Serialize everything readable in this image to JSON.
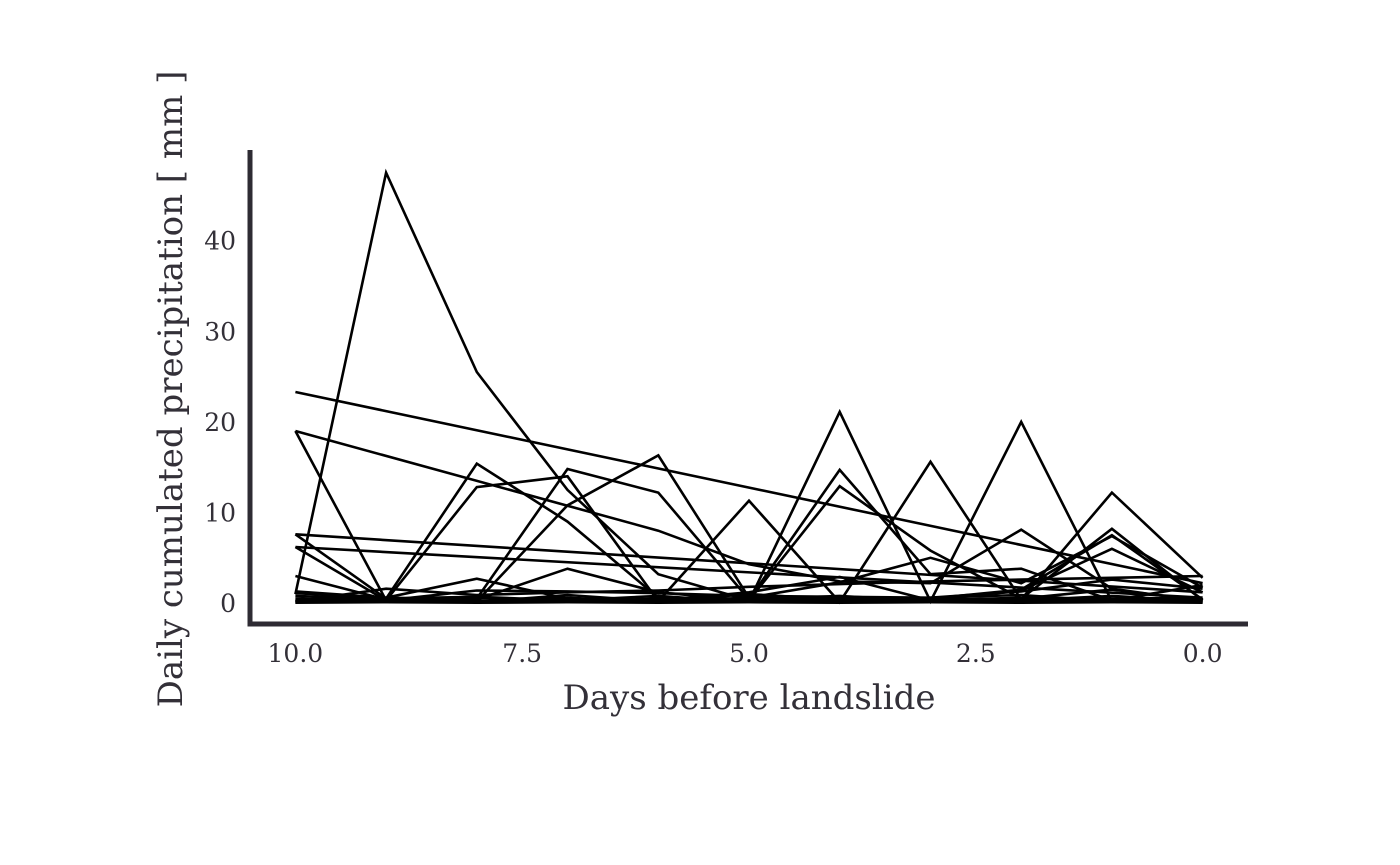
{
  "chart_data": {
    "type": "line",
    "title": "",
    "xlabel": "Days before landslide",
    "ylabel": "Daily cumulated precipitation [ mm ]",
    "xlim": [
      10.5,
      -0.5
    ],
    "ylim": [
      -2.3,
      50
    ],
    "x_reversed": true,
    "grid": false,
    "legend": "none",
    "x_ticks": [
      10.0,
      7.5,
      5.0,
      2.5,
      0.0
    ],
    "x_tick_labels": [
      "10.0",
      "7.5",
      "5.0",
      "2.5",
      "0.0"
    ],
    "y_ticks": [
      0,
      10,
      20,
      30,
      40
    ],
    "y_tick_labels": [
      "0",
      "10",
      "20",
      "30",
      "40"
    ],
    "line_color": "#000000",
    "axis_color": "#2e2b33",
    "series": [
      {
        "points": [
          [
            10,
            1
          ],
          [
            9,
            47.5
          ],
          [
            8,
            25.5
          ],
          [
            7,
            12.5
          ],
          [
            6,
            3.2
          ],
          [
            5,
            0.3
          ],
          [
            4,
            12.9
          ],
          [
            3,
            5.8
          ],
          [
            2,
            0.5
          ],
          [
            1,
            8.2
          ],
          [
            0,
            0.3
          ]
        ]
      },
      {
        "points": [
          [
            10,
            23.3
          ],
          [
            0,
            2.2
          ]
        ]
      },
      {
        "points": [
          [
            10,
            19
          ],
          [
            9,
            0.3
          ],
          [
            8,
            12.8
          ],
          [
            7,
            14
          ],
          [
            6,
            0.2
          ],
          [
            5,
            11.3
          ],
          [
            4,
            0.1
          ],
          [
            3,
            15.6
          ],
          [
            2,
            0.4
          ],
          [
            1,
            12.2
          ],
          [
            0,
            2.8
          ]
        ]
      },
      {
        "points": [
          [
            10,
            7.6
          ],
          [
            9,
            0.5
          ],
          [
            8,
            15.4
          ],
          [
            7,
            9
          ],
          [
            6,
            0.6
          ],
          [
            5,
            0.2
          ],
          [
            4,
            21.1
          ],
          [
            3,
            0.2
          ],
          [
            2,
            20
          ],
          [
            1,
            0.2
          ],
          [
            0,
            0.1
          ]
        ]
      },
      {
        "points": [
          [
            10,
            6.2
          ],
          [
            9,
            0.3
          ],
          [
            8,
            0.5
          ],
          [
            7,
            14.8
          ],
          [
            6,
            12.2
          ],
          [
            5,
            0.4
          ],
          [
            4,
            14.7
          ],
          [
            3,
            3.2
          ],
          [
            2,
            3.8
          ],
          [
            1,
            0.3
          ],
          [
            0,
            2
          ]
        ]
      },
      {
        "points": [
          [
            10,
            19
          ],
          [
            6,
            8
          ],
          [
            5,
            4.3
          ],
          [
            4,
            2.4
          ],
          [
            3,
            2.2
          ],
          [
            2,
            8.1
          ],
          [
            1,
            1.6
          ],
          [
            0,
            0.2
          ]
        ]
      },
      {
        "points": [
          [
            10,
            7.6
          ],
          [
            0,
            1.2
          ]
        ]
      },
      {
        "points": [
          [
            10,
            6.2
          ],
          [
            0,
            0.6
          ]
        ]
      },
      {
        "points": [
          [
            10,
            3
          ],
          [
            9,
            0.4
          ],
          [
            8,
            0.2
          ],
          [
            7,
            10.8
          ],
          [
            6,
            16.3
          ],
          [
            5,
            0.6
          ],
          [
            4,
            2.3
          ],
          [
            3,
            5
          ],
          [
            2,
            2.2
          ],
          [
            1,
            7.4
          ],
          [
            0,
            1.7
          ]
        ]
      },
      {
        "points": [
          [
            10,
            1.3
          ],
          [
            9,
            0.6
          ],
          [
            8,
            2.7
          ],
          [
            7,
            0.5
          ],
          [
            6,
            0.3
          ],
          [
            5,
            1.2
          ],
          [
            4,
            2.9
          ],
          [
            3,
            0.3
          ],
          [
            2,
            1.4
          ],
          [
            1,
            6
          ],
          [
            0,
            1.2
          ]
        ]
      },
      {
        "points": [
          [
            10,
            1.1
          ],
          [
            9,
            0.6
          ],
          [
            8,
            0.4
          ],
          [
            7,
            3.8
          ],
          [
            6,
            1.2
          ],
          [
            5,
            0.3
          ],
          [
            4,
            0.4
          ],
          [
            3,
            0.5
          ],
          [
            2,
            1.5
          ],
          [
            1,
            7.5
          ],
          [
            0,
            0.4
          ]
        ]
      },
      {
        "points": [
          [
            10,
            1.2
          ],
          [
            9,
            0.3
          ],
          [
            8,
            1.4
          ],
          [
            7,
            1.3
          ],
          [
            6,
            1.1
          ],
          [
            5,
            0.8
          ],
          [
            4,
            0.7
          ],
          [
            3,
            0.6
          ],
          [
            2,
            1.3
          ],
          [
            1,
            2.6
          ],
          [
            0,
            1.6
          ]
        ]
      },
      {
        "points": [
          [
            10,
            0.2
          ],
          [
            9,
            1.6
          ],
          [
            8,
            0.9
          ],
          [
            7,
            1.2
          ],
          [
            6,
            1.4
          ],
          [
            5,
            1.8
          ],
          [
            4,
            2.1
          ],
          [
            3,
            2.4
          ],
          [
            2,
            2.6
          ],
          [
            1,
            2.8
          ],
          [
            0,
            3
          ]
        ]
      },
      {
        "points": [
          [
            10,
            0.3
          ],
          [
            9,
            0.1
          ],
          [
            8,
            0.6
          ],
          [
            7,
            0.2
          ],
          [
            6,
            0.5
          ],
          [
            5,
            0.3
          ],
          [
            4,
            0.2
          ],
          [
            3,
            0.4
          ],
          [
            2,
            0.5
          ],
          [
            1,
            1.5
          ],
          [
            0,
            0.3
          ]
        ]
      },
      {
        "points": [
          [
            10,
            0.1
          ],
          [
            9,
            0.2
          ],
          [
            8,
            0.1
          ],
          [
            7,
            0.4
          ],
          [
            6,
            0.2
          ],
          [
            5,
            0.6
          ],
          [
            4,
            0.3
          ],
          [
            3,
            0.2
          ],
          [
            2,
            0.1
          ],
          [
            1,
            0.3
          ],
          [
            0,
            0.2
          ]
        ]
      },
      {
        "points": [
          [
            10,
            0.5
          ],
          [
            9,
            0.2
          ],
          [
            8,
            0.3
          ],
          [
            7,
            0.1
          ],
          [
            6,
            0.4
          ],
          [
            5,
            0.2
          ],
          [
            4,
            0.5
          ],
          [
            3,
            0.3
          ],
          [
            2,
            0.6
          ],
          [
            1,
            0.4
          ],
          [
            0,
            0.1
          ]
        ]
      },
      {
        "points": [
          [
            10,
            0.05
          ],
          [
            9,
            0.1
          ],
          [
            8,
            0.05
          ],
          [
            7,
            0.1
          ],
          [
            6,
            0.05
          ],
          [
            5,
            0.1
          ],
          [
            4,
            0.05
          ],
          [
            3,
            0.1
          ],
          [
            2,
            0.05
          ],
          [
            1,
            0.1
          ],
          [
            0,
            0.05
          ]
        ]
      },
      {
        "points": [
          [
            10,
            0.8
          ],
          [
            9,
            0.4
          ],
          [
            8,
            0.2
          ],
          [
            7,
            0.6
          ],
          [
            6,
            0.1
          ],
          [
            5,
            0.4
          ],
          [
            4,
            0.8
          ],
          [
            3,
            0.2
          ],
          [
            2,
            0.3
          ],
          [
            1,
            0.5
          ],
          [
            0,
            0.6
          ]
        ]
      },
      {
        "points": [
          [
            10,
            0.2
          ],
          [
            9,
            0.5
          ],
          [
            8,
            0.7
          ],
          [
            7,
            0.3
          ],
          [
            6,
            0.8
          ],
          [
            5,
            0.1
          ],
          [
            4,
            0.2
          ],
          [
            3,
            0.6
          ],
          [
            2,
            0.9
          ],
          [
            1,
            0.2
          ],
          [
            0,
            0.4
          ]
        ]
      },
      {
        "points": [
          [
            10,
            0.1
          ],
          [
            9,
            0.3
          ],
          [
            8,
            0.1
          ],
          [
            7,
            0.9
          ],
          [
            6,
            0.2
          ],
          [
            5,
            1
          ],
          [
            4,
            0.4
          ],
          [
            3,
            0.1
          ],
          [
            2,
            0.3
          ],
          [
            1,
            0.8
          ],
          [
            0,
            0.2
          ]
        ]
      }
    ]
  }
}
